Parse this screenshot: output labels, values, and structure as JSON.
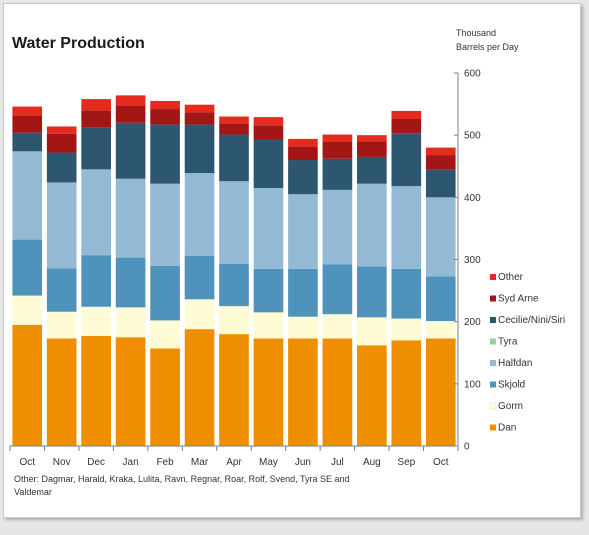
{
  "chart_data": {
    "type": "bar",
    "stacked": true,
    "title": "Water Production",
    "unit_label_lines": [
      "Thousand",
      "Barrels per Day"
    ],
    "categories": [
      "Oct",
      "Nov",
      "Dec",
      "Jan",
      "Feb",
      "Mar",
      "Apr",
      "May",
      "Jun",
      "Jul",
      "Aug",
      "Sep",
      "Oct"
    ],
    "ylim": [
      0,
      600
    ],
    "yticks": [
      0,
      100,
      200,
      300,
      400,
      500,
      600
    ],
    "y_axis_position": "right",
    "grid": false,
    "legend_position": "right",
    "series": [
      {
        "name": "Dan",
        "color": "#ee8e00",
        "values": [
          195,
          173,
          177,
          175,
          157,
          188,
          180,
          173,
          173,
          173,
          162,
          170,
          173
        ]
      },
      {
        "name": "Gorm",
        "color": "#fffbd4",
        "values": [
          47,
          43,
          47,
          48,
          45,
          48,
          45,
          42,
          35,
          39,
          45,
          35,
          28
        ]
      },
      {
        "name": "Skjold",
        "color": "#4f93bd",
        "values": [
          90,
          70,
          83,
          80,
          88,
          70,
          68,
          70,
          77,
          80,
          82,
          80,
          72
        ]
      },
      {
        "name": "Halfdan",
        "color": "#93b9d4",
        "values": [
          142,
          138,
          138,
          127,
          132,
          133,
          133,
          130,
          120,
          120,
          133,
          133,
          127
        ]
      },
      {
        "name": "Tyra",
        "color": "#9ad39a",
        "values": [
          0,
          0,
          0,
          0,
          0,
          0,
          0,
          0,
          0,
          0,
          0,
          0,
          0
        ]
      },
      {
        "name": "Cecilie/Nini/Siri",
        "color": "#2d5670",
        "values": [
          30,
          48,
          67,
          90,
          95,
          78,
          75,
          78,
          55,
          50,
          43,
          85,
          45
        ]
      },
      {
        "name": "Syd Arne",
        "color": "#a31616",
        "values": [
          28,
          30,
          28,
          28,
          25,
          20,
          18,
          23,
          22,
          27,
          25,
          23,
          23
        ]
      },
      {
        "name": "Other",
        "color": "#e52a1e",
        "values": [
          14,
          12,
          18,
          16,
          13,
          12,
          11,
          13,
          12,
          12,
          10,
          13,
          12
        ]
      }
    ],
    "footnote_lines": [
      "Other: Dagmar, Harald, Kraka, Lulita, Ravn, Regnar, Roar, Rolf, Svend, Tyra SE and",
      "Valdemar"
    ]
  }
}
